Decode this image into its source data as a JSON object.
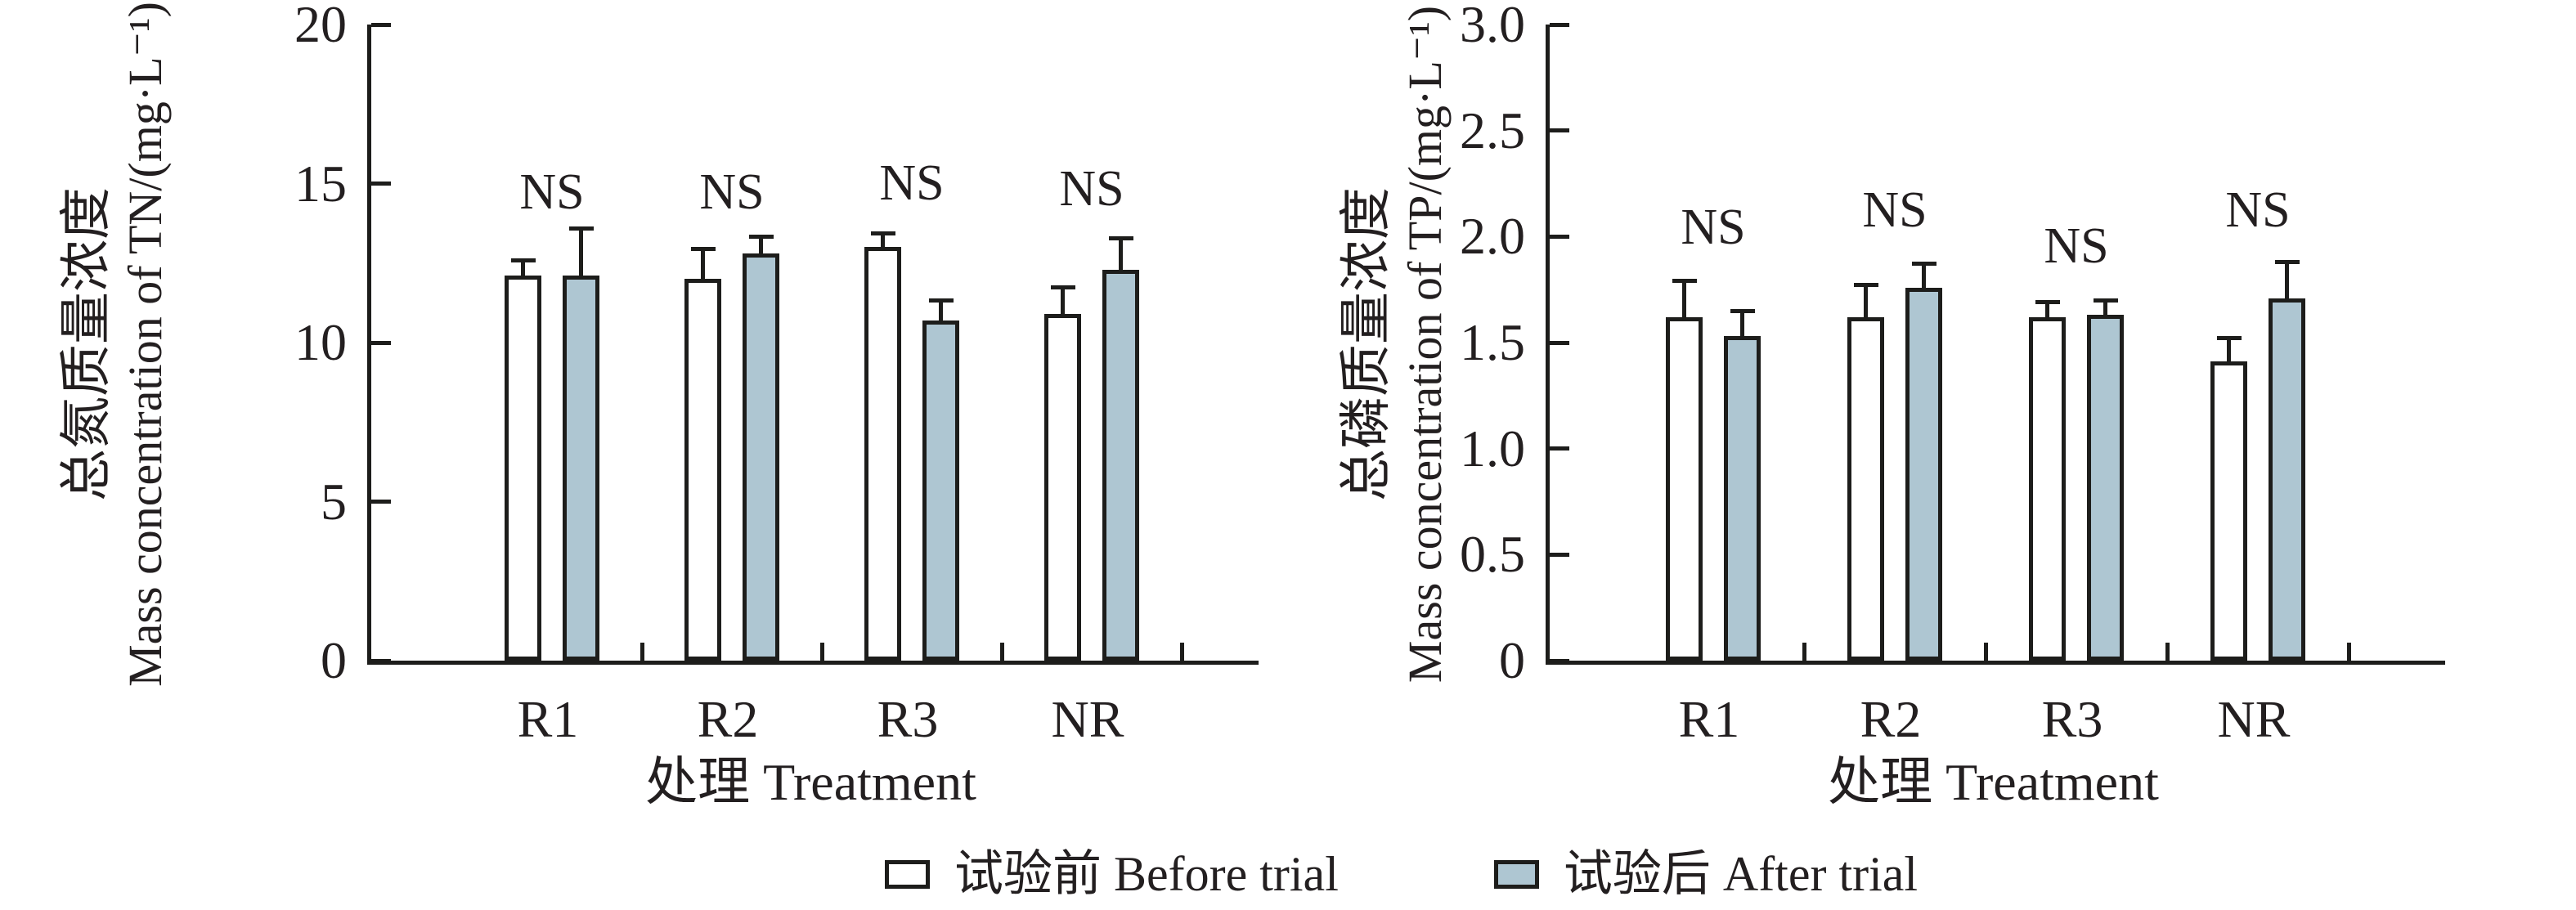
{
  "figure": {
    "background": "#ffffff",
    "ink_color": "#1d1d1b",
    "text_color": "#231f20"
  },
  "legend": {
    "items": [
      {
        "label": "试验前 Before trial",
        "series": "before",
        "color": "#ffffff"
      },
      {
        "label": "试验后 After trial",
        "series": "after",
        "color": "#aec6d2"
      }
    ]
  },
  "chart_data": [
    {
      "id": "tn",
      "type": "bar",
      "ylabel_cn": "总氮质量浓度",
      "ylabel_en": "Mass concentration of TN/(mg·L⁻¹)",
      "xlabel": "处理 Treatment",
      "categories": [
        "R1",
        "R2",
        "R3",
        "NR"
      ],
      "ylim": [
        0,
        20
      ],
      "yticks": [
        0,
        5,
        10,
        15,
        20
      ],
      "ytick_labels": [
        "0",
        "5",
        "10",
        "15",
        "20"
      ],
      "grid": false,
      "legend_position": "bottom",
      "series": [
        {
          "name": "试验前 Before trial",
          "fill": "#ffffff",
          "values": [
            12.1,
            12.0,
            13.0,
            10.9
          ],
          "errors": [
            0.55,
            1.0,
            0.5,
            0.9
          ]
        },
        {
          "name": "试验后 After trial",
          "fill": "#aec6d2",
          "values": [
            12.1,
            12.8,
            10.7,
            12.3
          ],
          "errors": [
            1.55,
            0.6,
            0.7,
            1.05
          ]
        }
      ],
      "annotations": [
        {
          "text": "NS",
          "y": 13.9
        },
        {
          "text": "NS",
          "y": 13.9
        },
        {
          "text": "NS",
          "y": 14.2
        },
        {
          "text": "NS",
          "y": 14.0
        }
      ]
    },
    {
      "id": "tp",
      "type": "bar",
      "ylabel_cn": "总磷质量浓度",
      "ylabel_en": "Mass concentration of TP/(mg·L⁻¹)",
      "xlabel": "处理 Treatment",
      "categories": [
        "R1",
        "R2",
        "R3",
        "NR"
      ],
      "ylim": [
        0,
        3.0
      ],
      "yticks": [
        0,
        0.5,
        1.0,
        1.5,
        2.0,
        2.5,
        3.0
      ],
      "ytick_labels": [
        "0",
        "0.5",
        "1.0",
        "1.5",
        "2.0",
        "2.5",
        "3.0"
      ],
      "grid": false,
      "legend_position": "bottom",
      "series": [
        {
          "name": "试验前 Before trial",
          "fill": "#ffffff",
          "values": [
            1.62,
            1.62,
            1.62,
            1.41
          ],
          "errors": [
            0.18,
            0.16,
            0.08,
            0.12
          ]
        },
        {
          "name": "试验后 After trial",
          "fill": "#aec6d2",
          "values": [
            1.53,
            1.76,
            1.63,
            1.71
          ],
          "errors": [
            0.13,
            0.12,
            0.08,
            0.18
          ]
        }
      ],
      "annotations": [
        {
          "text": "NS",
          "y": 1.92
        },
        {
          "text": "NS",
          "y": 2.0
        },
        {
          "text": "NS",
          "y": 1.83
        },
        {
          "text": "NS",
          "y": 2.0
        }
      ]
    }
  ]
}
